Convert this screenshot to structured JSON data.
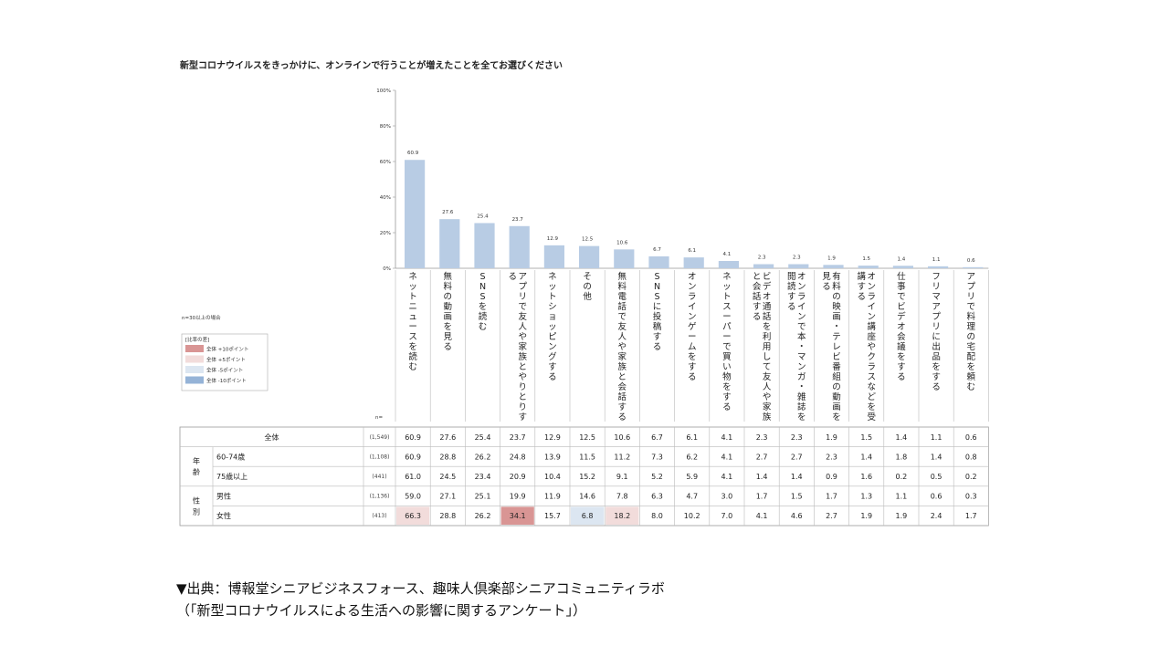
{
  "chart_data": {
    "type": "bar",
    "title": "新型コロナウイルスをきっかけに、オンラインで行うことが増えたことを全てお選びください",
    "y_ticks": [
      "0%",
      "20%",
      "40%",
      "60%",
      "80%",
      "100%"
    ],
    "ylim": [
      0,
      100
    ],
    "categories": [
      "ネットニュースを読む",
      "無料の動画を見る",
      "SNSを読む",
      "アプリで友人や家族とやりとりする",
      "ネットショッピングする",
      "その他",
      "無料電話で友人や家族と会話する",
      "SNSに投稿する",
      "オンラインゲームをする",
      "ネットスーパーで買い物をする",
      "ビデオ通話を利用して友人や家族と会話する",
      "オンラインで本・マンガ・雑誌を閲読する",
      "有料の映画・テレビ番組の動画を見る",
      "オンライン講座やクラスなどを受講する",
      "仕事でビデオ会議をする",
      "フリマアプリに出品をする",
      "アプリで料理の宅配を頼む"
    ],
    "values": [
      60.9,
      27.6,
      25.4,
      23.7,
      12.9,
      12.5,
      10.6,
      6.7,
      6.1,
      4.1,
      2.3,
      2.3,
      1.9,
      1.5,
      1.4,
      1.1,
      0.6
    ],
    "value_labels": [
      "60.9",
      "27.6",
      "25.4",
      "23.7",
      "12.9",
      "12.5",
      "10.6",
      "6.7",
      "6.1",
      "4.1",
      "2.3",
      "2.3",
      "1.9",
      "1.5",
      "1.4",
      "1.1",
      "0.6"
    ],
    "bar_color": "#b8cce4",
    "note": "n=30以上の場合",
    "legend": {
      "title": "[比率の差]",
      "placement": "left",
      "items": [
        {
          "label": "全体 +10ポイント",
          "color": "#d99594"
        },
        {
          "label": "全体 +5ポイント",
          "color": "#f2dcdb"
        },
        {
          "label": "全体 -5ポイント",
          "color": "#dce6f1"
        },
        {
          "label": "全体 -10ポイント",
          "color": "#95b3d7"
        }
      ]
    },
    "n_header": "n=",
    "table": {
      "groups": [
        {
          "label": "",
          "rows": [
            0
          ]
        },
        {
          "label": "年齢",
          "rows": [
            1,
            2
          ]
        },
        {
          "label": "性別",
          "rows": [
            3,
            4
          ]
        }
      ],
      "rows": [
        {
          "label": "全体",
          "n": "(1,549)",
          "values": [
            "60.9",
            "27.6",
            "25.4",
            "23.7",
            "12.9",
            "12.5",
            "10.6",
            "6.7",
            "6.1",
            "4.1",
            "2.3",
            "2.3",
            "1.9",
            "1.5",
            "1.4",
            "1.1",
            "0.6"
          ]
        },
        {
          "label": "60-74歳",
          "n": "(1,108)",
          "values": [
            "60.9",
            "28.8",
            "26.2",
            "24.8",
            "13.9",
            "11.5",
            "11.2",
            "7.3",
            "6.2",
            "4.1",
            "2.7",
            "2.7",
            "2.3",
            "1.4",
            "1.8",
            "1.4",
            "0.8"
          ]
        },
        {
          "label": "75歳以上",
          "n": "(441)",
          "values": [
            "61.0",
            "24.5",
            "23.4",
            "20.9",
            "10.4",
            "15.2",
            "9.1",
            "5.2",
            "5.9",
            "4.1",
            "1.4",
            "1.4",
            "0.9",
            "1.6",
            "0.2",
            "0.5",
            "0.2"
          ]
        },
        {
          "label": "男性",
          "n": "(1,136)",
          "values": [
            "59.0",
            "27.1",
            "25.1",
            "19.9",
            "11.9",
            "14.6",
            "7.8",
            "6.3",
            "4.7",
            "3.0",
            "1.7",
            "1.5",
            "1.7",
            "1.3",
            "1.1",
            "0.6",
            "0.3"
          ]
        },
        {
          "label": "女性",
          "n": "(413)",
          "values": [
            "66.3",
            "28.8",
            "26.2",
            "34.1",
            "15.7",
            "6.8",
            "18.2",
            "8.0",
            "10.2",
            "7.0",
            "4.1",
            "4.6",
            "2.7",
            "1.9",
            "1.9",
            "2.4",
            "1.7"
          ]
        }
      ],
      "highlights": [
        {
          "row": 4,
          "col": 0,
          "color": "#f2dcdb"
        },
        {
          "row": 4,
          "col": 3,
          "color": "#d99594"
        },
        {
          "row": 4,
          "col": 5,
          "color": "#dce6f1"
        },
        {
          "row": 4,
          "col": 6,
          "color": "#f2dcdb"
        }
      ]
    }
  },
  "source": {
    "line1": "▼出典：博報堂シニアビジネスフォース、趣味人倶楽部シニアコミュニティラボ",
    "line2": "（「新型コロナウイルスによる生活への影響に関するアンケート」）"
  }
}
